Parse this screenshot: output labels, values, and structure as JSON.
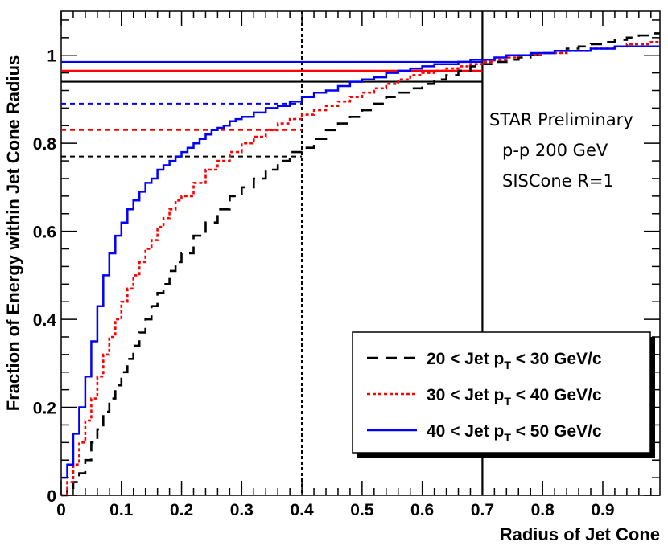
{
  "chart_data": {
    "type": "line",
    "title": "",
    "xlabel": "Radius of Jet Cone",
    "ylabel": "Fraction of Energy within Jet Cone Radius",
    "xlim": [
      0,
      1.0
    ],
    "ylim": [
      0,
      1.1
    ],
    "x_ticks": [
      0,
      0.1,
      0.2,
      0.3,
      0.4,
      0.5,
      0.6,
      0.7,
      0.8,
      0.9
    ],
    "x_tick_labels": [
      "0",
      "0.1",
      "0.2",
      "0.3",
      "0.4",
      "0.5",
      "0.6",
      "0.7",
      "0.8",
      "0.9"
    ],
    "y_ticks": [
      0,
      0.2,
      0.4,
      0.6,
      0.8,
      1.0
    ],
    "y_tick_labels": [
      "0",
      "0.2",
      "0.4",
      "0.6",
      "0.8",
      "1"
    ],
    "annotations": [
      "STAR Preliminary",
      "p-p 200 GeV",
      "SISCone R=1"
    ],
    "legend_position": "bottom-right",
    "series": [
      {
        "name_prefix": "20 < Jet p",
        "name_sub": "T",
        "name_suffix": " < 30 GeV/c",
        "color": "#000000",
        "style": "dashed",
        "x": [
          0.0,
          0.01,
          0.02,
          0.03,
          0.04,
          0.05,
          0.06,
          0.07,
          0.08,
          0.09,
          0.1,
          0.11,
          0.12,
          0.13,
          0.14,
          0.15,
          0.16,
          0.17,
          0.18,
          0.19,
          0.2,
          0.22,
          0.24,
          0.26,
          0.28,
          0.3,
          0.32,
          0.34,
          0.36,
          0.38,
          0.4,
          0.42,
          0.44,
          0.46,
          0.48,
          0.5,
          0.52,
          0.54,
          0.56,
          0.58,
          0.6,
          0.62,
          0.64,
          0.66,
          0.68,
          0.7,
          0.72,
          0.74,
          0.76,
          0.78,
          0.8,
          0.82,
          0.84,
          0.86,
          0.88,
          0.9,
          0.92,
          0.94,
          0.96,
          0.98
        ],
        "y": [
          0.0,
          0.01,
          0.03,
          0.05,
          0.08,
          0.12,
          0.15,
          0.19,
          0.22,
          0.25,
          0.28,
          0.31,
          0.34,
          0.37,
          0.4,
          0.43,
          0.46,
          0.48,
          0.51,
          0.53,
          0.55,
          0.59,
          0.62,
          0.65,
          0.68,
          0.7,
          0.72,
          0.74,
          0.76,
          0.78,
          0.79,
          0.81,
          0.83,
          0.845,
          0.86,
          0.875,
          0.89,
          0.905,
          0.915,
          0.925,
          0.935,
          0.945,
          0.955,
          0.965,
          0.975,
          0.98,
          0.985,
          0.99,
          0.995,
          1.0,
          1.005,
          1.01,
          1.015,
          1.02,
          1.025,
          1.03,
          1.035,
          1.04,
          1.045,
          1.05
        ],
        "marker_y": 0.77
      },
      {
        "name_prefix": "30 < Jet p",
        "name_sub": "T",
        "name_suffix": " < 40 GeV/c",
        "color": "#ff0000",
        "style": "dotted",
        "x": [
          0.0,
          0.01,
          0.02,
          0.03,
          0.04,
          0.05,
          0.06,
          0.07,
          0.08,
          0.09,
          0.1,
          0.11,
          0.12,
          0.13,
          0.14,
          0.15,
          0.16,
          0.17,
          0.18,
          0.19,
          0.2,
          0.22,
          0.24,
          0.26,
          0.28,
          0.3,
          0.32,
          0.34,
          0.36,
          0.38,
          0.4,
          0.42,
          0.44,
          0.46,
          0.48,
          0.5,
          0.52,
          0.54,
          0.56,
          0.58,
          0.6,
          0.62,
          0.64,
          0.66,
          0.68,
          0.7,
          0.72,
          0.74,
          0.76,
          0.78,
          0.8,
          0.82,
          0.84,
          0.86,
          0.88,
          0.9,
          0.92,
          0.94,
          0.96,
          0.98
        ],
        "y": [
          0.0,
          0.03,
          0.07,
          0.12,
          0.17,
          0.22,
          0.27,
          0.32,
          0.36,
          0.4,
          0.44,
          0.47,
          0.5,
          0.53,
          0.56,
          0.58,
          0.61,
          0.63,
          0.65,
          0.67,
          0.68,
          0.71,
          0.74,
          0.76,
          0.78,
          0.8,
          0.815,
          0.83,
          0.845,
          0.855,
          0.865,
          0.875,
          0.885,
          0.895,
          0.905,
          0.915,
          0.925,
          0.935,
          0.945,
          0.955,
          0.96,
          0.965,
          0.97,
          0.975,
          0.98,
          0.985,
          0.99,
          0.995,
          1.0,
          1.0,
          1.005,
          1.005,
          1.01,
          1.01,
          1.015,
          1.015,
          1.02,
          1.025,
          1.025,
          1.03
        ],
        "marker_y": 0.83
      },
      {
        "name_prefix": "40 < Jet p",
        "name_sub": "T",
        "name_suffix": " < 50 GeV/c",
        "color": "#0000ff",
        "style": "solid",
        "x": [
          0.0,
          0.01,
          0.02,
          0.03,
          0.04,
          0.05,
          0.06,
          0.07,
          0.08,
          0.09,
          0.1,
          0.11,
          0.12,
          0.13,
          0.14,
          0.15,
          0.16,
          0.17,
          0.18,
          0.19,
          0.2,
          0.21,
          0.22,
          0.23,
          0.24,
          0.25,
          0.26,
          0.27,
          0.28,
          0.29,
          0.3,
          0.32,
          0.34,
          0.36,
          0.38,
          0.4,
          0.42,
          0.44,
          0.46,
          0.48,
          0.5,
          0.52,
          0.54,
          0.56,
          0.58,
          0.6,
          0.62,
          0.64,
          0.66,
          0.68,
          0.7,
          0.72,
          0.74,
          0.76,
          0.78,
          0.8,
          0.82,
          0.84,
          0.86,
          0.88,
          0.9,
          0.92,
          0.94,
          0.96,
          0.98
        ],
        "y": [
          0.04,
          0.07,
          0.14,
          0.2,
          0.27,
          0.35,
          0.43,
          0.5,
          0.55,
          0.59,
          0.62,
          0.65,
          0.67,
          0.69,
          0.71,
          0.72,
          0.74,
          0.75,
          0.76,
          0.77,
          0.78,
          0.79,
          0.8,
          0.81,
          0.82,
          0.83,
          0.835,
          0.84,
          0.85,
          0.855,
          0.86,
          0.87,
          0.88,
          0.885,
          0.895,
          0.905,
          0.915,
          0.92,
          0.93,
          0.94,
          0.945,
          0.95,
          0.96,
          0.965,
          0.97,
          0.975,
          0.98,
          0.98,
          0.985,
          0.99,
          0.99,
          0.995,
          1.0,
          1.0,
          1.005,
          1.005,
          1.01,
          1.01,
          1.01,
          1.015,
          1.015,
          1.02,
          1.02,
          1.02,
          1.02
        ],
        "marker_y": 0.89
      }
    ],
    "reference_lines": [
      {
        "orientation": "vertical",
        "x": 0.4,
        "style": "dotted",
        "color": "#000000"
      },
      {
        "orientation": "vertical",
        "x": 0.7,
        "style": "solid",
        "color": "#000000"
      },
      {
        "orientation": "horizontal",
        "y": 0.94,
        "x_end": 0.7,
        "style": "solid",
        "color": "#000000"
      },
      {
        "orientation": "horizontal",
        "y": 0.965,
        "x_end": 0.7,
        "style": "solid",
        "color": "#ff0000"
      },
      {
        "orientation": "horizontal",
        "y": 0.985,
        "x_end": 0.7,
        "style": "solid",
        "color": "#0000ff"
      }
    ]
  }
}
